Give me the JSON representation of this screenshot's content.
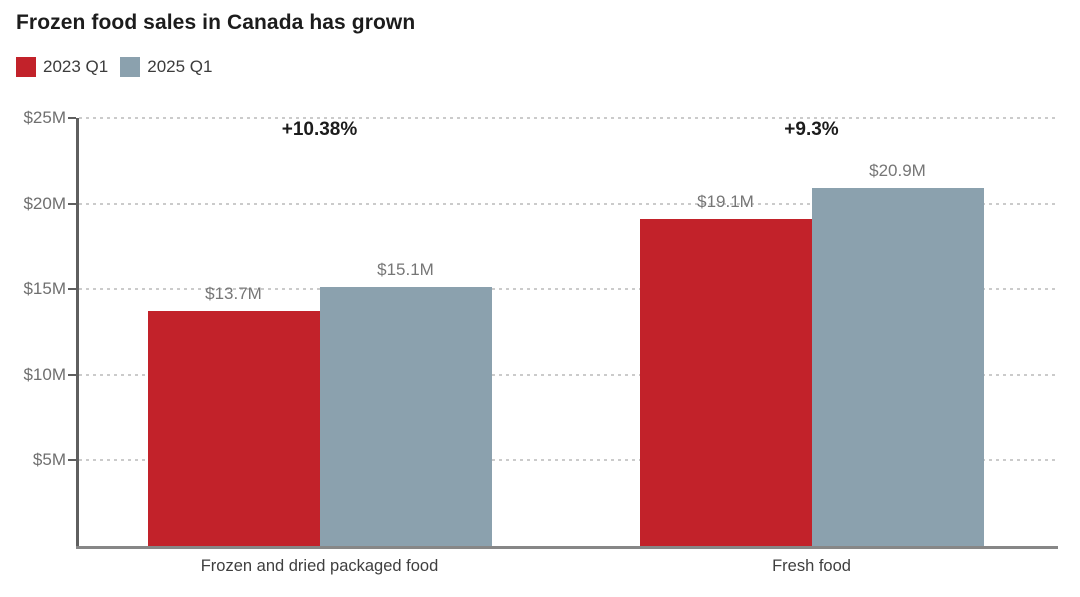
{
  "header": {
    "title": "Frozen food sales in Canada has grown"
  },
  "legend": {
    "position": "top-left",
    "items": [
      {
        "label": "2023 Q1",
        "color": "#c2222a"
      },
      {
        "label": "2025 Q1",
        "color": "#8ba1ae"
      }
    ]
  },
  "chart_data": {
    "type": "bar",
    "title": "Frozen food sales in Canada has grown",
    "categories": [
      "Frozen and dried packaged food",
      "Fresh food"
    ],
    "series": [
      {
        "name": "2023 Q1",
        "color": "#c2222a",
        "values": [
          13.7,
          19.1
        ],
        "value_labels": [
          "$13.7M",
          "$19.1M"
        ]
      },
      {
        "name": "2025 Q1",
        "color": "#8ba1ae",
        "values": [
          15.1,
          20.9
        ],
        "value_labels": [
          "$15.1M",
          "$20.9M"
        ]
      }
    ],
    "group_annotations": [
      "+10.38%",
      "+9.3%"
    ],
    "xlabel": "",
    "ylabel": "",
    "ylim": [
      0,
      25
    ],
    "yticks": [
      5,
      10,
      15,
      20,
      25
    ],
    "ytick_labels": [
      "$5M",
      "$10M",
      "$15M",
      "$20M",
      "$25M"
    ],
    "value_unit": "$M",
    "grid": "horizontal-dashed",
    "legend_position": "top-left"
  },
  "colors": {
    "series_2023_q1": "#c2222a",
    "series_2025_q1": "#8ba1ae",
    "gridline": "#cbcbcb",
    "axis": "#5f5f5f",
    "baseline": "#878787"
  }
}
